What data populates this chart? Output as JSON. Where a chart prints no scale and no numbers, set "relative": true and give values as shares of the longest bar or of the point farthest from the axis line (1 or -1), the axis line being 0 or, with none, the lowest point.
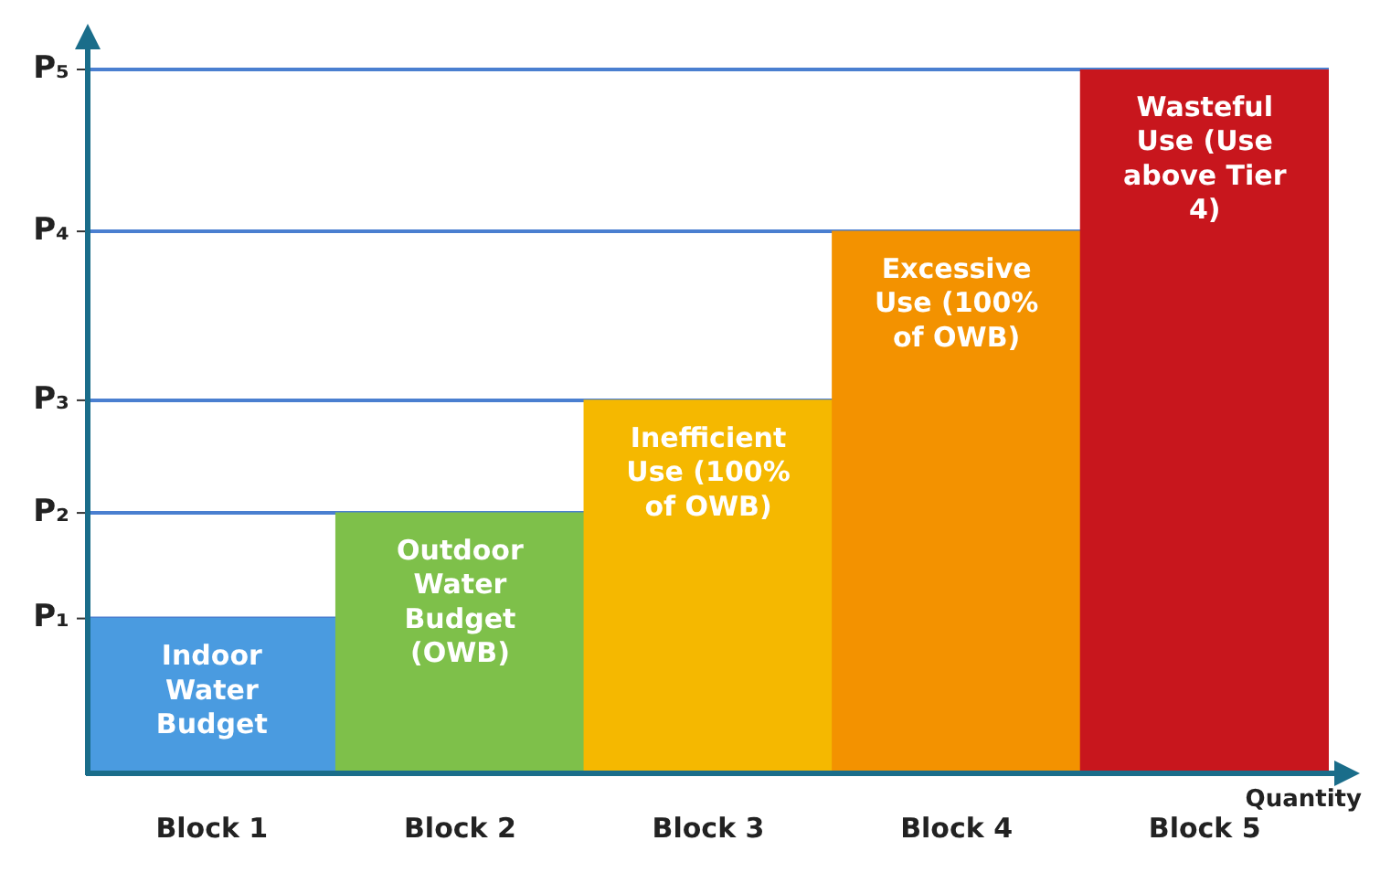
{
  "chart_data": {
    "type": "bar",
    "relative": true,
    "xlabel": "Quantity",
    "categories": [
      "Block 1",
      "Block 2",
      "Block 3",
      "Block 4",
      "Block 5"
    ],
    "values": [
      0.22,
      0.37,
      0.53,
      0.77,
      1
    ],
    "colors": [
      "#4a9be0",
      "#7ec04a",
      "#f5b800",
      "#f39200",
      "#c8161d"
    ],
    "ref_lines": [
      {
        "axis": "y",
        "value": 0.22,
        "label": "P₁",
        "color": "#4a7fd0"
      },
      {
        "axis": "y",
        "value": 0.37,
        "label": "P₂",
        "color": "#4a7fd0"
      },
      {
        "axis": "y",
        "value": 0.53,
        "label": "P₃",
        "color": "#4a7fd0"
      },
      {
        "axis": "y",
        "value": 0.77,
        "label": "P₄",
        "color": "#4a7fd0"
      },
      {
        "axis": "y",
        "value": 1,
        "label": "P₅",
        "color": "#4a7fd0"
      }
    ],
    "annotations": [
      "Indoor Water Budget",
      "Outdoor Water Budget (OWB)",
      "Inefficient Use (100% of OWB)",
      "Excessive Use (100% of OWB)",
      "Wasteful Use (Use above Tier 4)"
    ],
    "legend": false
  }
}
